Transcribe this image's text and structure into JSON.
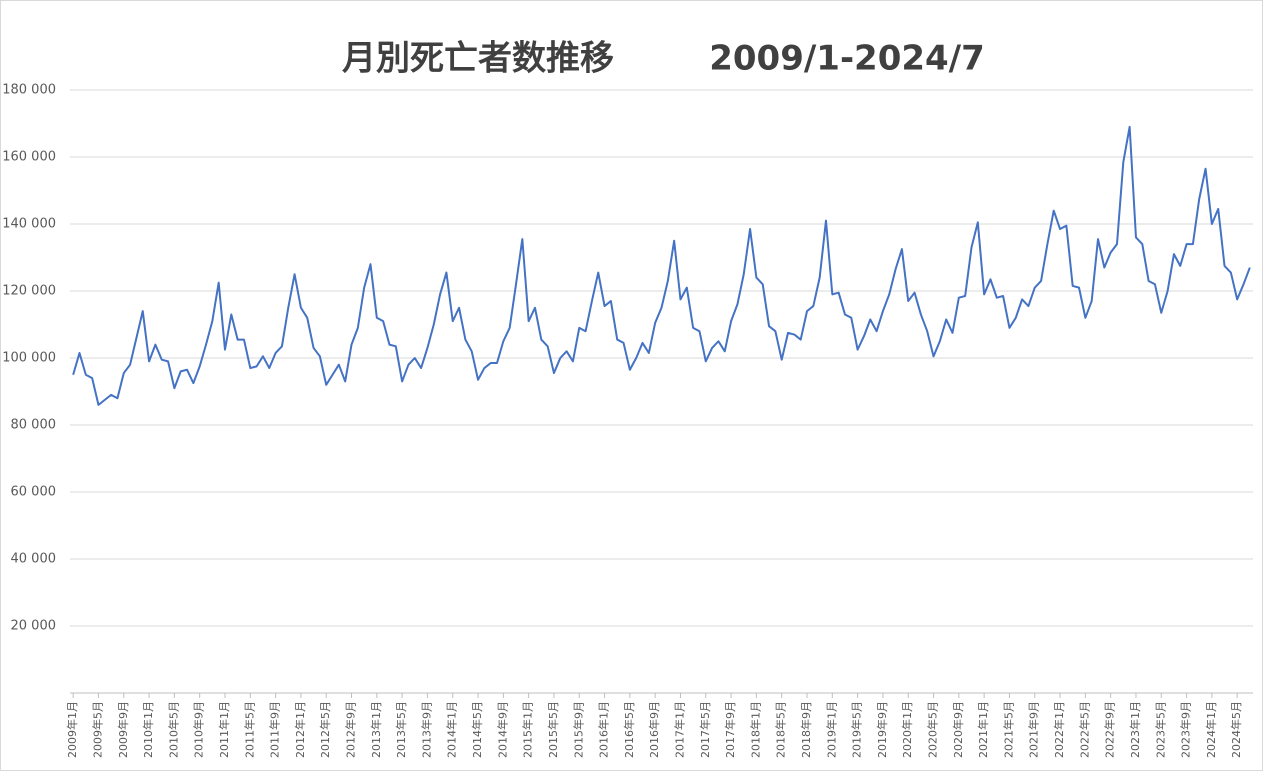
{
  "chart_data": {
    "type": "line",
    "title": "月別死亡者数推移",
    "subtitle": "2009/1-2024/7",
    "categories": [
      "2009年1月",
      null,
      null,
      null,
      "2009年5月",
      null,
      null,
      null,
      "2009年9月",
      null,
      null,
      null,
      "2010年1月",
      null,
      null,
      null,
      "2010年5月",
      null,
      null,
      null,
      "2010年9月",
      null,
      null,
      null,
      "2011年1月",
      null,
      null,
      null,
      "2011年5月",
      null,
      null,
      null,
      "2011年9月",
      null,
      null,
      null,
      "2012年1月",
      null,
      null,
      null,
      "2012年5月",
      null,
      null,
      null,
      "2012年9月",
      null,
      null,
      null,
      "2013年1月",
      null,
      null,
      null,
      "2013年5月",
      null,
      null,
      null,
      "2013年9月",
      null,
      null,
      null,
      "2014年1月",
      null,
      null,
      null,
      "2014年5月",
      null,
      null,
      null,
      "2014年9月",
      null,
      null,
      null,
      "2015年1月",
      null,
      null,
      null,
      "2015年5月",
      null,
      null,
      null,
      "2015年9月",
      null,
      null,
      null,
      "2016年1月",
      null,
      null,
      null,
      "2016年5月",
      null,
      null,
      null,
      "2016年9月",
      null,
      null,
      null,
      "2017年1月",
      null,
      null,
      null,
      "2017年5月",
      null,
      null,
      null,
      "2017年9月",
      null,
      null,
      null,
      "2018年1月",
      null,
      null,
      null,
      "2018年5月",
      null,
      null,
      null,
      "2018年9月",
      null,
      null,
      null,
      "2019年1月",
      null,
      null,
      null,
      "2019年5月",
      null,
      null,
      null,
      "2019年9月",
      null,
      null,
      null,
      "2020年1月",
      null,
      null,
      null,
      "2020年5月",
      null,
      null,
      null,
      "2020年9月",
      null,
      null,
      null,
      "2021年1月",
      null,
      null,
      null,
      "2021年5月",
      null,
      null,
      null,
      "2021年9月",
      null,
      null,
      null,
      "2022年1月",
      null,
      null,
      null,
      "2022年5月",
      null,
      null,
      null,
      "2022年9月",
      null,
      null,
      null,
      "2023年1月",
      null,
      null,
      null,
      "2023年5月",
      null,
      null,
      null,
      "2023年9月",
      null,
      null,
      null,
      "2024年1月",
      null,
      null,
      null,
      "2024年5月",
      null,
      null
    ],
    "values": [
      95000,
      101500,
      95000,
      94000,
      86000,
      87500,
      89000,
      88000,
      95500,
      98000,
      106000,
      114000,
      99000,
      104000,
      99500,
      99000,
      91000,
      96000,
      96500,
      92500,
      97500,
      104000,
      111000,
      122500,
      102500,
      113000,
      105500,
      105500,
      97000,
      97500,
      100500,
      97000,
      101500,
      103500,
      115000,
      125000,
      115000,
      112000,
      103000,
      100500,
      92000,
      95000,
      98000,
      93000,
      104000,
      109000,
      121000,
      128000,
      112000,
      111000,
      104000,
      103500,
      93000,
      98000,
      100000,
      97000,
      103000,
      110000,
      119000,
      125500,
      111000,
      115000,
      105500,
      102000,
      93500,
      97000,
      98500,
      98500,
      105000,
      109000,
      122000,
      135500,
      111000,
      115000,
      105500,
      103500,
      95500,
      100000,
      102000,
      99000,
      109000,
      108000,
      117000,
      125500,
      115500,
      117000,
      105500,
      104500,
      96500,
      100000,
      104500,
      101500,
      110500,
      115000,
      123000,
      135000,
      117500,
      121000,
      109000,
      108000,
      99000,
      103000,
      105000,
      102000,
      111000,
      116000,
      125000,
      138500,
      124000,
      122000,
      109500,
      108000,
      99500,
      107500,
      107000,
      105500,
      114000,
      115500,
      124000,
      141000,
      119000,
      119500,
      113000,
      112000,
      102500,
      106500,
      111500,
      108000,
      114000,
      119000,
      126500,
      132500,
      117000,
      119500,
      113000,
      108000,
      100500,
      105000,
      111500,
      107500,
      118000,
      118500,
      133000,
      140500,
      119000,
      123500,
      118000,
      118500,
      109000,
      112000,
      117500,
      115500,
      121000,
      123000,
      134000,
      144000,
      138500,
      139500,
      121500,
      121000,
      112000,
      117000,
      135500,
      127000,
      131500,
      134000,
      158500,
      169000,
      136000,
      134000,
      123000,
      122000,
      113500,
      120000,
      131000,
      127500,
      134000,
      134000,
      147500,
      156500,
      140000,
      144500,
      127500,
      125500,
      117500,
      122000,
      127000
    ],
    "color": "#4472c4",
    "ylim": [
      0,
      180000
    ],
    "yticks": [
      {
        "value": 20000,
        "label": "20 000"
      },
      {
        "value": 40000,
        "label": "40 000"
      },
      {
        "value": 60000,
        "label": "60 000"
      },
      {
        "value": 80000,
        "label": "80 000"
      },
      {
        "value": 100000,
        "label": "100 000"
      },
      {
        "value": 120000,
        "label": "120 000"
      },
      {
        "value": 140000,
        "label": "140 000"
      },
      {
        "value": 160000,
        "label": "160 000"
      },
      {
        "value": 180000,
        "label": "180 000"
      }
    ],
    "grid": true
  }
}
